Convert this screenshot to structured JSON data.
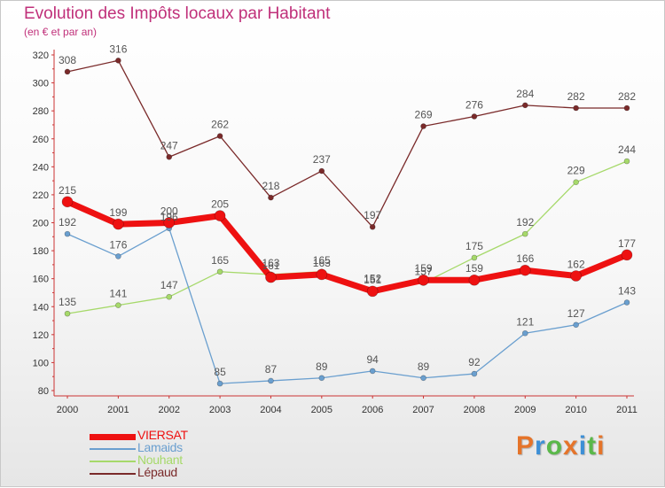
{
  "header": {
    "title": "Evolution des Impôts locaux par Habitant",
    "subtitle": "(en € et par an)"
  },
  "chart_data": {
    "type": "line",
    "title": "Evolution des Impôts locaux par Habitant",
    "subtitle": "(en € et par an)",
    "x": [
      "2000",
      "2001",
      "2002",
      "2003",
      "2004",
      "2005",
      "2006",
      "2007",
      "2008",
      "2009",
      "2010",
      "2011"
    ],
    "ylim": [
      80,
      320
    ],
    "yticks": [
      80,
      100,
      120,
      140,
      160,
      180,
      200,
      220,
      240,
      260,
      280,
      300,
      320
    ],
    "grid": false,
    "legend_position": "bottom-left",
    "series": [
      {
        "name": "Lépaud",
        "color": "#7a2a2a",
        "values": [
          308,
          316,
          247,
          262,
          218,
          237,
          197,
          269,
          276,
          284,
          282,
          282
        ]
      },
      {
        "name": "Nouhant",
        "color": "#a6d96a",
        "values": [
          135,
          141,
          147,
          165,
          163,
          165,
          152,
          157,
          175,
          192,
          229,
          244
        ]
      },
      {
        "name": "Lamaids",
        "color": "#6a9fcf",
        "values": [
          192,
          176,
          196,
          85,
          87,
          89,
          94,
          89,
          92,
          121,
          127,
          143
        ]
      },
      {
        "name": "VIERSAT",
        "color": "#ee1111",
        "values": [
          215,
          199,
          200,
          205,
          161,
          163,
          151,
          159,
          159,
          166,
          162,
          177
        ]
      }
    ],
    "legend_order": [
      "VIERSAT",
      "Lamaids",
      "Nouhant",
      "Lépaud"
    ]
  },
  "logo": {
    "text": "Proxiti",
    "colors": [
      "#e5742a",
      "#3d8fd6",
      "#5ab84a",
      "#e5742a",
      "#3d8fd6",
      "#5ab84a",
      "#e5742a"
    ]
  }
}
